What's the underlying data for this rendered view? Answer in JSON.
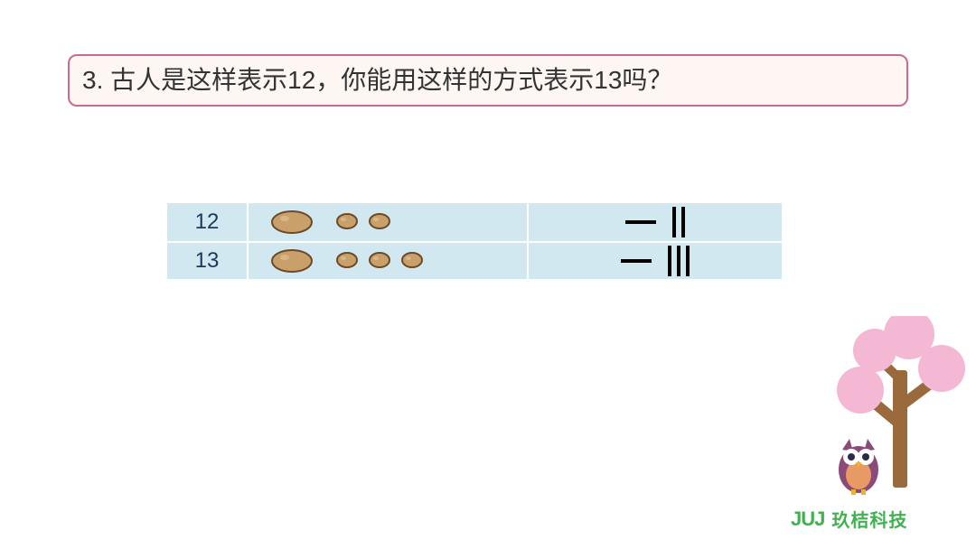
{
  "question": {
    "number": "3.",
    "text": "古人是这样表示12，你能用这样的方式表示13吗？",
    "border_color": "#c96b8f",
    "bg_color": "#fdf6f2",
    "text_color": "#333333"
  },
  "table": {
    "row_bg": "#d2e8f0",
    "text_color": "#1a3a5a",
    "rows": [
      {
        "num": "12",
        "big_stones": 1,
        "small_stones": 2,
        "tens": 1,
        "ones": 2
      },
      {
        "num": "13",
        "big_stones": 1,
        "small_stones": 3,
        "tens": 1,
        "ones": 3
      }
    ]
  },
  "decoration": {
    "tree_trunk": "#9b6a3c",
    "tree_foliage": "#f4b7d4",
    "owl_body": "#8a4a7a",
    "owl_belly": "#e89a64",
    "owl_eye": "#ffffff",
    "owl_pupil": "#2a2a4a"
  },
  "brand": {
    "mark": "JUJ",
    "name": "玖桔科技",
    "color": "#3fb24f"
  }
}
